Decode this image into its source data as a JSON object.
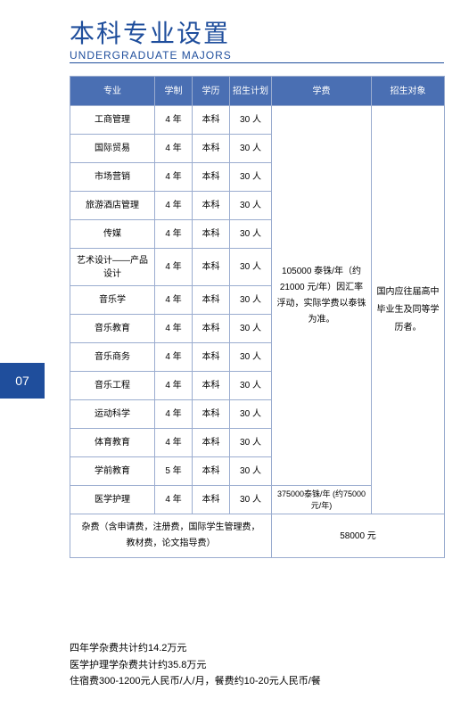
{
  "colors": {
    "primary_blue": "#1f4e9c",
    "header_blue": "#4a6fb3",
    "border": "#9aaccf",
    "title_color": "#1f4e9c"
  },
  "title": {
    "cn": "本科专业设置",
    "en": "UNDERGRADUATE MAJORS"
  },
  "page_number": "07",
  "table": {
    "col_widths": [
      "95px",
      "42px",
      "42px",
      "47px",
      "112px",
      "82px"
    ],
    "headers": [
      "专业",
      "学制",
      "学历",
      "招生计划",
      "学费",
      "招生对象"
    ],
    "rows": [
      {
        "major": "工商管理",
        "duration": "4 年",
        "degree": "本科",
        "plan": "30 人"
      },
      {
        "major": "国际贸易",
        "duration": "4 年",
        "degree": "本科",
        "plan": "30 人"
      },
      {
        "major": "市场营销",
        "duration": "4 年",
        "degree": "本科",
        "plan": "30 人"
      },
      {
        "major": "旅游酒店管理",
        "duration": "4 年",
        "degree": "本科",
        "plan": "30 人"
      },
      {
        "major": "传媒",
        "duration": "4 年",
        "degree": "本科",
        "plan": "30 人"
      },
      {
        "major": "艺术设计——产品设计",
        "duration": "4 年",
        "degree": "本科",
        "plan": "30 人",
        "tall": true
      },
      {
        "major": "音乐学",
        "duration": "4 年",
        "degree": "本科",
        "plan": "30 人"
      },
      {
        "major": "音乐教育",
        "duration": "4 年",
        "degree": "本科",
        "plan": "30 人"
      },
      {
        "major": "音乐商务",
        "duration": "4 年",
        "degree": "本科",
        "plan": "30 人"
      },
      {
        "major": "音乐工程",
        "duration": "4 年",
        "degree": "本科",
        "plan": "30 人"
      },
      {
        "major": "运动科学",
        "duration": "4 年",
        "degree": "本科",
        "plan": "30 人"
      },
      {
        "major": "体育教育",
        "duration": "4 年",
        "degree": "本科",
        "plan": "30 人"
      },
      {
        "major": "学前教育",
        "duration": "5 年",
        "degree": "本科",
        "plan": "30 人"
      }
    ],
    "nursing_row": {
      "major": "医学护理",
      "duration": "4 年",
      "degree": "本科",
      "plan": "30 人",
      "tuition": "375000泰铢/年 (约75000元/年)"
    },
    "tuition_main": "105000 泰铢/年（约 21000 元/年）因汇率浮动，实际学费以泰铢为准。",
    "target": "国内应往届高中毕业生及同等学历者。",
    "misc_fee_label": "杂费（含申请费，注册费，国际学生管理费，  教材费，论文指导费）",
    "misc_fee_value": "58000 元"
  },
  "notes": {
    "line1": "四年学杂费共计约14.2万元",
    "line2": "医学护理学杂费共计约35.8万元",
    "line3": "住宿费300-1200元人民币/人/月，餐费约10-20元人民币/餐"
  }
}
